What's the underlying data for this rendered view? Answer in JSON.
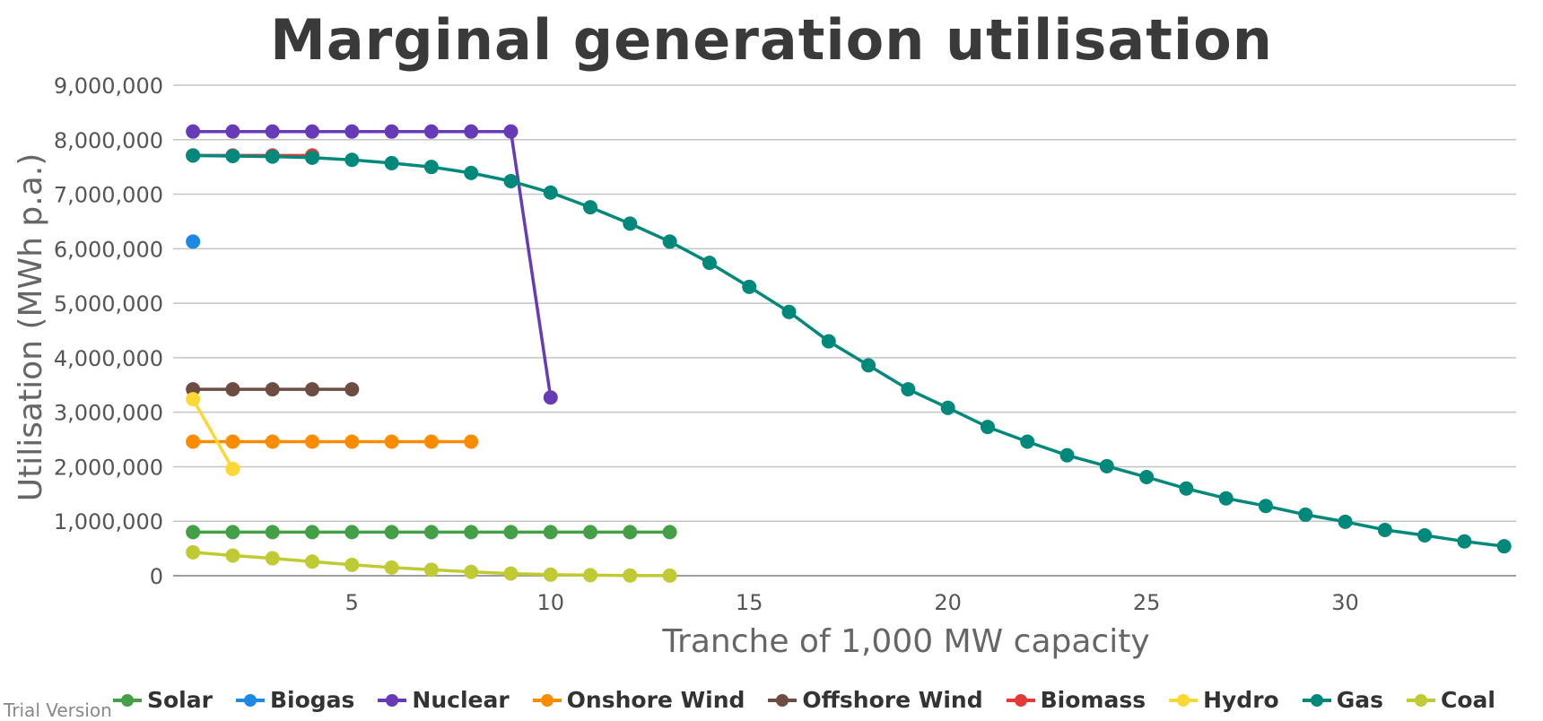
{
  "chart_data": {
    "type": "line",
    "title": "Marginal generation utilisation",
    "xlabel": "Tranche of 1,000 MW capacity",
    "ylabel": "Utilisation (MWh p.a.)",
    "xlim": [
      0.5,
      34.3
    ],
    "ylim": [
      0,
      9000000
    ],
    "xticks": [
      5,
      10,
      15,
      20,
      25,
      30
    ],
    "xtick_labels": [
      "5",
      "10",
      "15",
      "20",
      "25",
      "30"
    ],
    "yticks": [
      0,
      1000000,
      2000000,
      3000000,
      4000000,
      5000000,
      6000000,
      7000000,
      8000000,
      9000000
    ],
    "ytick_labels": [
      "0",
      "1,000,000",
      "2,000,000",
      "3,000,000",
      "4,000,000",
      "5,000,000",
      "6,000,000",
      "7,000,000",
      "8,000,000",
      "9,000,000"
    ],
    "grid": true,
    "legend_position": "bottom",
    "series": [
      {
        "name": "Solar",
        "color": "#43A047",
        "x": [
          1,
          2,
          3,
          4,
          5,
          6,
          7,
          8,
          9,
          10,
          11,
          12,
          13
        ],
        "y": [
          800000,
          800000,
          800000,
          800000,
          800000,
          800000,
          800000,
          800000,
          800000,
          800000,
          800000,
          800000,
          800000
        ]
      },
      {
        "name": "Biogas",
        "color": "#1E88E5",
        "x": [
          1
        ],
        "y": [
          6130000
        ]
      },
      {
        "name": "Nuclear",
        "color": "#673AB7",
        "x": [
          1,
          2,
          3,
          4,
          5,
          6,
          7,
          8,
          9,
          10
        ],
        "y": [
          8150000,
          8150000,
          8150000,
          8150000,
          8150000,
          8150000,
          8150000,
          8150000,
          8150000,
          3270000
        ]
      },
      {
        "name": "Onshore Wind",
        "color": "#FB8C00",
        "x": [
          1,
          2,
          3,
          4,
          5,
          6,
          7,
          8
        ],
        "y": [
          2460000,
          2460000,
          2460000,
          2460000,
          2460000,
          2460000,
          2460000,
          2460000
        ]
      },
      {
        "name": "Offshore Wind",
        "color": "#6D4C41",
        "x": [
          1,
          2,
          3,
          4,
          5
        ],
        "y": [
          3420000,
          3420000,
          3420000,
          3420000,
          3420000
        ]
      },
      {
        "name": "Biomass",
        "color": "#E53935",
        "x": [
          1,
          2,
          3,
          4
        ],
        "y": [
          7710000,
          7710000,
          7710000,
          7710000
        ]
      },
      {
        "name": "Hydro",
        "color": "#FDD835",
        "x": [
          1,
          2
        ],
        "y": [
          3240000,
          1960000
        ]
      },
      {
        "name": "Gas",
        "color": "#00897B",
        "x": [
          1,
          2,
          3,
          4,
          5,
          6,
          7,
          8,
          9,
          10,
          11,
          12,
          13,
          14,
          15,
          16,
          17,
          18,
          19,
          20,
          21,
          22,
          23,
          24,
          25,
          26,
          27,
          28,
          29,
          30,
          31,
          32,
          33,
          34
        ],
        "y": [
          7710000,
          7700000,
          7690000,
          7670000,
          7630000,
          7570000,
          7500000,
          7390000,
          7240000,
          7030000,
          6760000,
          6460000,
          6130000,
          5740000,
          5300000,
          4840000,
          4300000,
          3860000,
          3420000,
          3080000,
          2730000,
          2460000,
          2210000,
          2010000,
          1810000,
          1600000,
          1420000,
          1280000,
          1120000,
          990000,
          840000,
          740000,
          630000,
          540000
        ]
      },
      {
        "name": "Coal",
        "color": "#C0CA33",
        "x": [
          1,
          2,
          3,
          4,
          5,
          6,
          7,
          8,
          9,
          10,
          11,
          12,
          13
        ],
        "y": [
          430000,
          370000,
          320000,
          260000,
          200000,
          150000,
          110000,
          70000,
          40000,
          20000,
          10000,
          5000,
          2000
        ]
      }
    ]
  },
  "watermark": "Trial Version"
}
